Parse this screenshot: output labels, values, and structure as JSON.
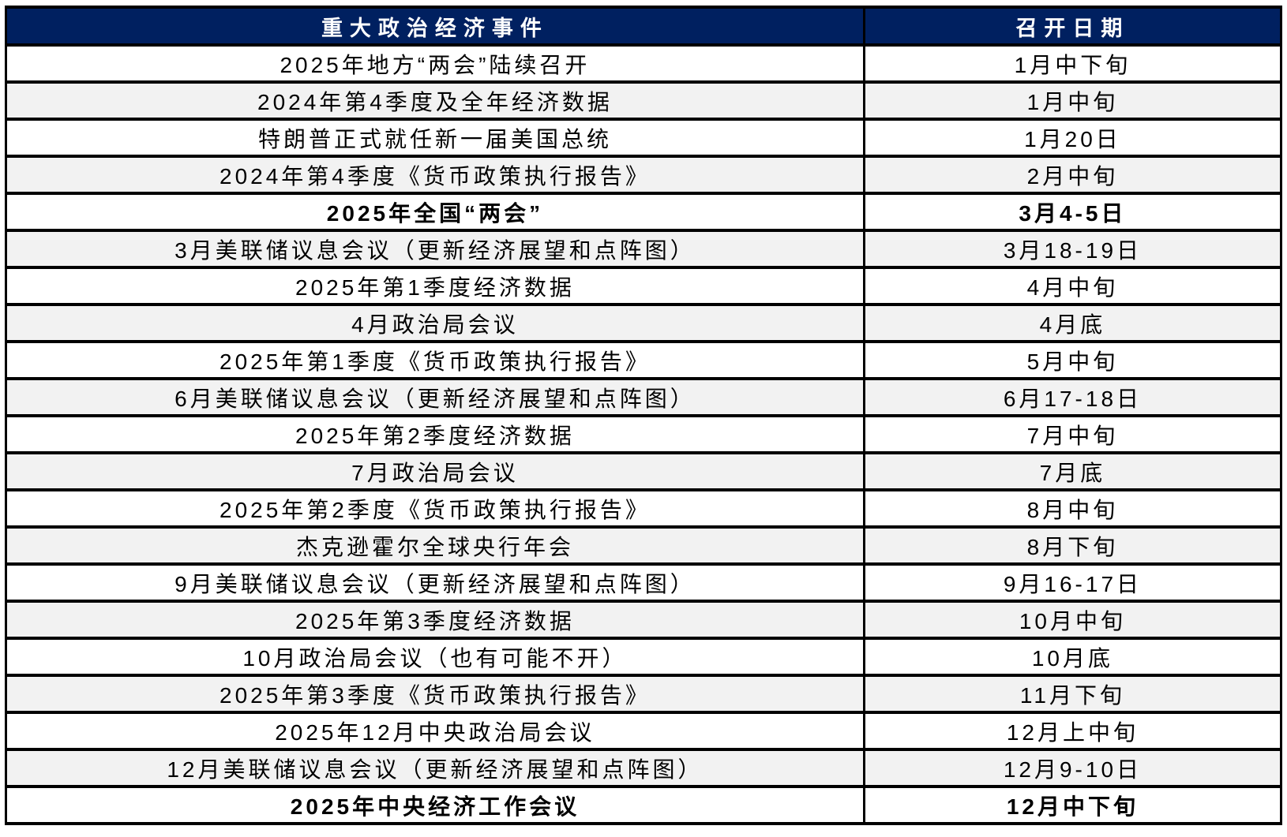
{
  "table": {
    "header": {
      "event": "重大政治经济事件",
      "date": "召开日期"
    },
    "rows": [
      {
        "event": "2025年地方“两会”陆续召开",
        "date": "1月中下旬",
        "bold": false
      },
      {
        "event": "2024年第4季度及全年经济数据",
        "date": "1月中旬",
        "bold": false
      },
      {
        "event": "特朗普正式就任新一届美国总统",
        "date": "1月20日",
        "bold": false
      },
      {
        "event": "2024年第4季度《货币政策执行报告》",
        "date": "2月中旬",
        "bold": false
      },
      {
        "event": "2025年全国“两会”",
        "date": "3月4-5日",
        "bold": true
      },
      {
        "event": "3月美联储议息会议（更新经济展望和点阵图）",
        "date": "3月18-19日",
        "bold": false
      },
      {
        "event": "2025年第1季度经济数据",
        "date": "4月中旬",
        "bold": false
      },
      {
        "event": "4月政治局会议",
        "date": "4月底",
        "bold": false
      },
      {
        "event": "2025年第1季度《货币政策执行报告》",
        "date": "5月中旬",
        "bold": false
      },
      {
        "event": "6月美联储议息会议（更新经济展望和点阵图）",
        "date": "6月17-18日",
        "bold": false
      },
      {
        "event": "2025年第2季度经济数据",
        "date": "7月中旬",
        "bold": false
      },
      {
        "event": "7月政治局会议",
        "date": "7月底",
        "bold": false
      },
      {
        "event": "2025年第2季度《货币政策执行报告》",
        "date": "8月中旬",
        "bold": false
      },
      {
        "event": "杰克逊霍尔全球央行年会",
        "date": "8月下旬",
        "bold": false
      },
      {
        "event": "9月美联储议息会议（更新经济展望和点阵图）",
        "date": "9月16-17日",
        "bold": false
      },
      {
        "event": "2025年第3季度经济数据",
        "date": "10月中旬",
        "bold": false
      },
      {
        "event": "10月政治局会议（也有可能不开）",
        "date": "10月底",
        "bold": false
      },
      {
        "event": "2025年第3季度《货币政策执行报告》",
        "date": "11月下旬",
        "bold": false
      },
      {
        "event": "2025年12月中央政治局会议",
        "date": "12月上中旬",
        "bold": false
      },
      {
        "event": "12月美联储议息会议（更新经济展望和点阵图）",
        "date": "12月9-10日",
        "bold": false
      },
      {
        "event": "2025年中央经济工作会议",
        "date": "12月中下旬",
        "bold": true
      }
    ]
  },
  "colors": {
    "header_bg": "#002060",
    "header_text": "#ffffff",
    "row_bg": "#ffffff",
    "row_alt_bg": "#f2f2f2",
    "border": "#000000",
    "body_text": "#000000"
  }
}
